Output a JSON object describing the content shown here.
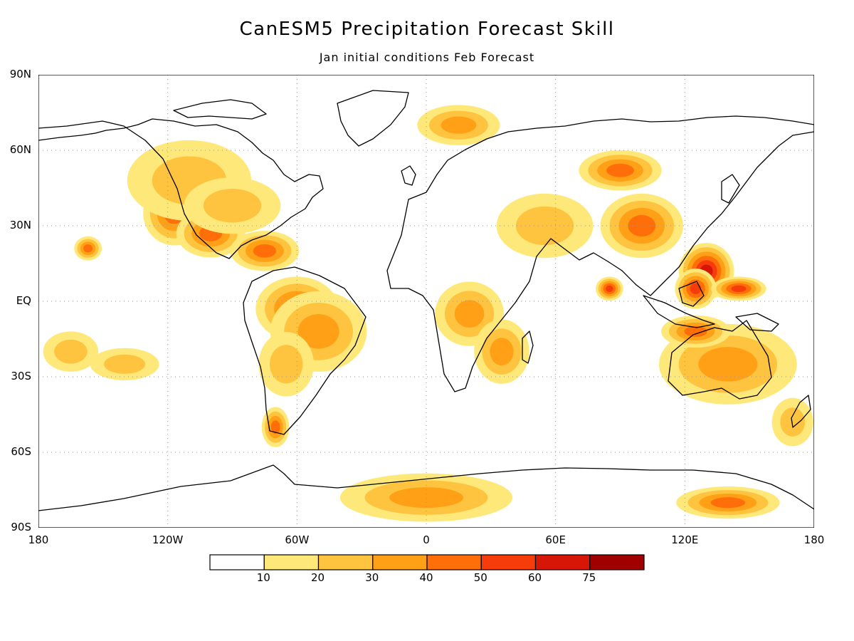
{
  "title": "CanESM5 Precipitation Forecast Skill",
  "subtitle": "Jan initial conditions  Feb Forecast",
  "axes": {
    "lat_labels": [
      {
        "value": 90,
        "label": "90N"
      },
      {
        "value": 60,
        "label": "60N"
      },
      {
        "value": 30,
        "label": "30N"
      },
      {
        "value": 0,
        "label": "EQ"
      },
      {
        "value": -30,
        "label": "30S"
      },
      {
        "value": -60,
        "label": "60S"
      },
      {
        "value": -90,
        "label": "90S"
      }
    ],
    "lon_labels": [
      {
        "value": -180,
        "label": "180"
      },
      {
        "value": -120,
        "label": "120W"
      },
      {
        "value": -60,
        "label": "60W"
      },
      {
        "value": 0,
        "label": "0"
      },
      {
        "value": 60,
        "label": "60E"
      },
      {
        "value": 120,
        "label": "120E"
      },
      {
        "value": 180,
        "label": "180"
      }
    ],
    "lat_range": [
      -90,
      90
    ],
    "lon_range": [
      -180,
      180
    ],
    "grid": true
  },
  "colorbar": {
    "levels": [
      "10",
      "20",
      "30",
      "40",
      "50",
      "60",
      "75"
    ],
    "colors": [
      "#ffffff",
      "#ffe87a",
      "#ffc43f",
      "#ffa016",
      "#ff6e09",
      "#f73c0c",
      "#d81608",
      "#a00000"
    ]
  },
  "skill_regions": [
    {
      "lon": -117,
      "lat": 35,
      "rx": 9,
      "ry": 8,
      "level": 4
    },
    {
      "lon": -100,
      "lat": 27,
      "rx": 10,
      "ry": 6,
      "level": 4
    },
    {
      "lon": -110,
      "lat": 48,
      "rx": 18,
      "ry": 10,
      "level": 2
    },
    {
      "lon": -75,
      "lat": 20,
      "rx": 10,
      "ry": 5,
      "level": 4
    },
    {
      "lon": -90,
      "lat": 38,
      "rx": 14,
      "ry": 7,
      "level": 2
    },
    {
      "lon": -60,
      "lat": -3,
      "rx": 12,
      "ry": 8,
      "level": 4
    },
    {
      "lon": -50,
      "lat": -12,
      "rx": 14,
      "ry": 10,
      "level": 3
    },
    {
      "lon": -65,
      "lat": -25,
      "rx": 8,
      "ry": 8,
      "level": 2
    },
    {
      "lon": -70,
      "lat": -50,
      "rx": 4,
      "ry": 5,
      "level": 4
    },
    {
      "lon": -157,
      "lat": 21,
      "rx": 4,
      "ry": 3,
      "level": 4
    },
    {
      "lon": 130,
      "lat": 12,
      "rx": 8,
      "ry": 7,
      "level": 6
    },
    {
      "lon": 125,
      "lat": 5,
      "rx": 6,
      "ry": 5,
      "level": 5
    },
    {
      "lon": 145,
      "lat": 5,
      "rx": 8,
      "ry": 3,
      "level": 5
    },
    {
      "lon": 85,
      "lat": 5,
      "rx": 4,
      "ry": 3,
      "level": 5
    },
    {
      "lon": 100,
      "lat": 30,
      "rx": 12,
      "ry": 8,
      "level": 4
    },
    {
      "lon": 90,
      "lat": 52,
      "rx": 12,
      "ry": 5,
      "level": 4
    },
    {
      "lon": 140,
      "lat": -25,
      "rx": 20,
      "ry": 10,
      "level": 3
    },
    {
      "lon": 125,
      "lat": -12,
      "rx": 10,
      "ry": 4,
      "level": 4
    },
    {
      "lon": 140,
      "lat": -80,
      "rx": 15,
      "ry": 4,
      "level": 4
    },
    {
      "lon": 0,
      "lat": -78,
      "rx": 25,
      "ry": 6,
      "level": 3
    },
    {
      "lon": 20,
      "lat": -5,
      "rx": 10,
      "ry": 8,
      "level": 3
    },
    {
      "lon": 35,
      "lat": -20,
      "rx": 8,
      "ry": 8,
      "level": 3
    },
    {
      "lon": 15,
      "lat": 70,
      "rx": 12,
      "ry": 5,
      "level": 3
    },
    {
      "lon": -165,
      "lat": -20,
      "rx": 8,
      "ry": 5,
      "level": 2
    },
    {
      "lon": 170,
      "lat": -48,
      "rx": 6,
      "ry": 6,
      "level": 2
    },
    {
      "lon": -140,
      "lat": -25,
      "rx": 10,
      "ry": 4,
      "level": 2
    },
    {
      "lon": 55,
      "lat": 30,
      "rx": 14,
      "ry": 8,
      "level": 2
    }
  ]
}
